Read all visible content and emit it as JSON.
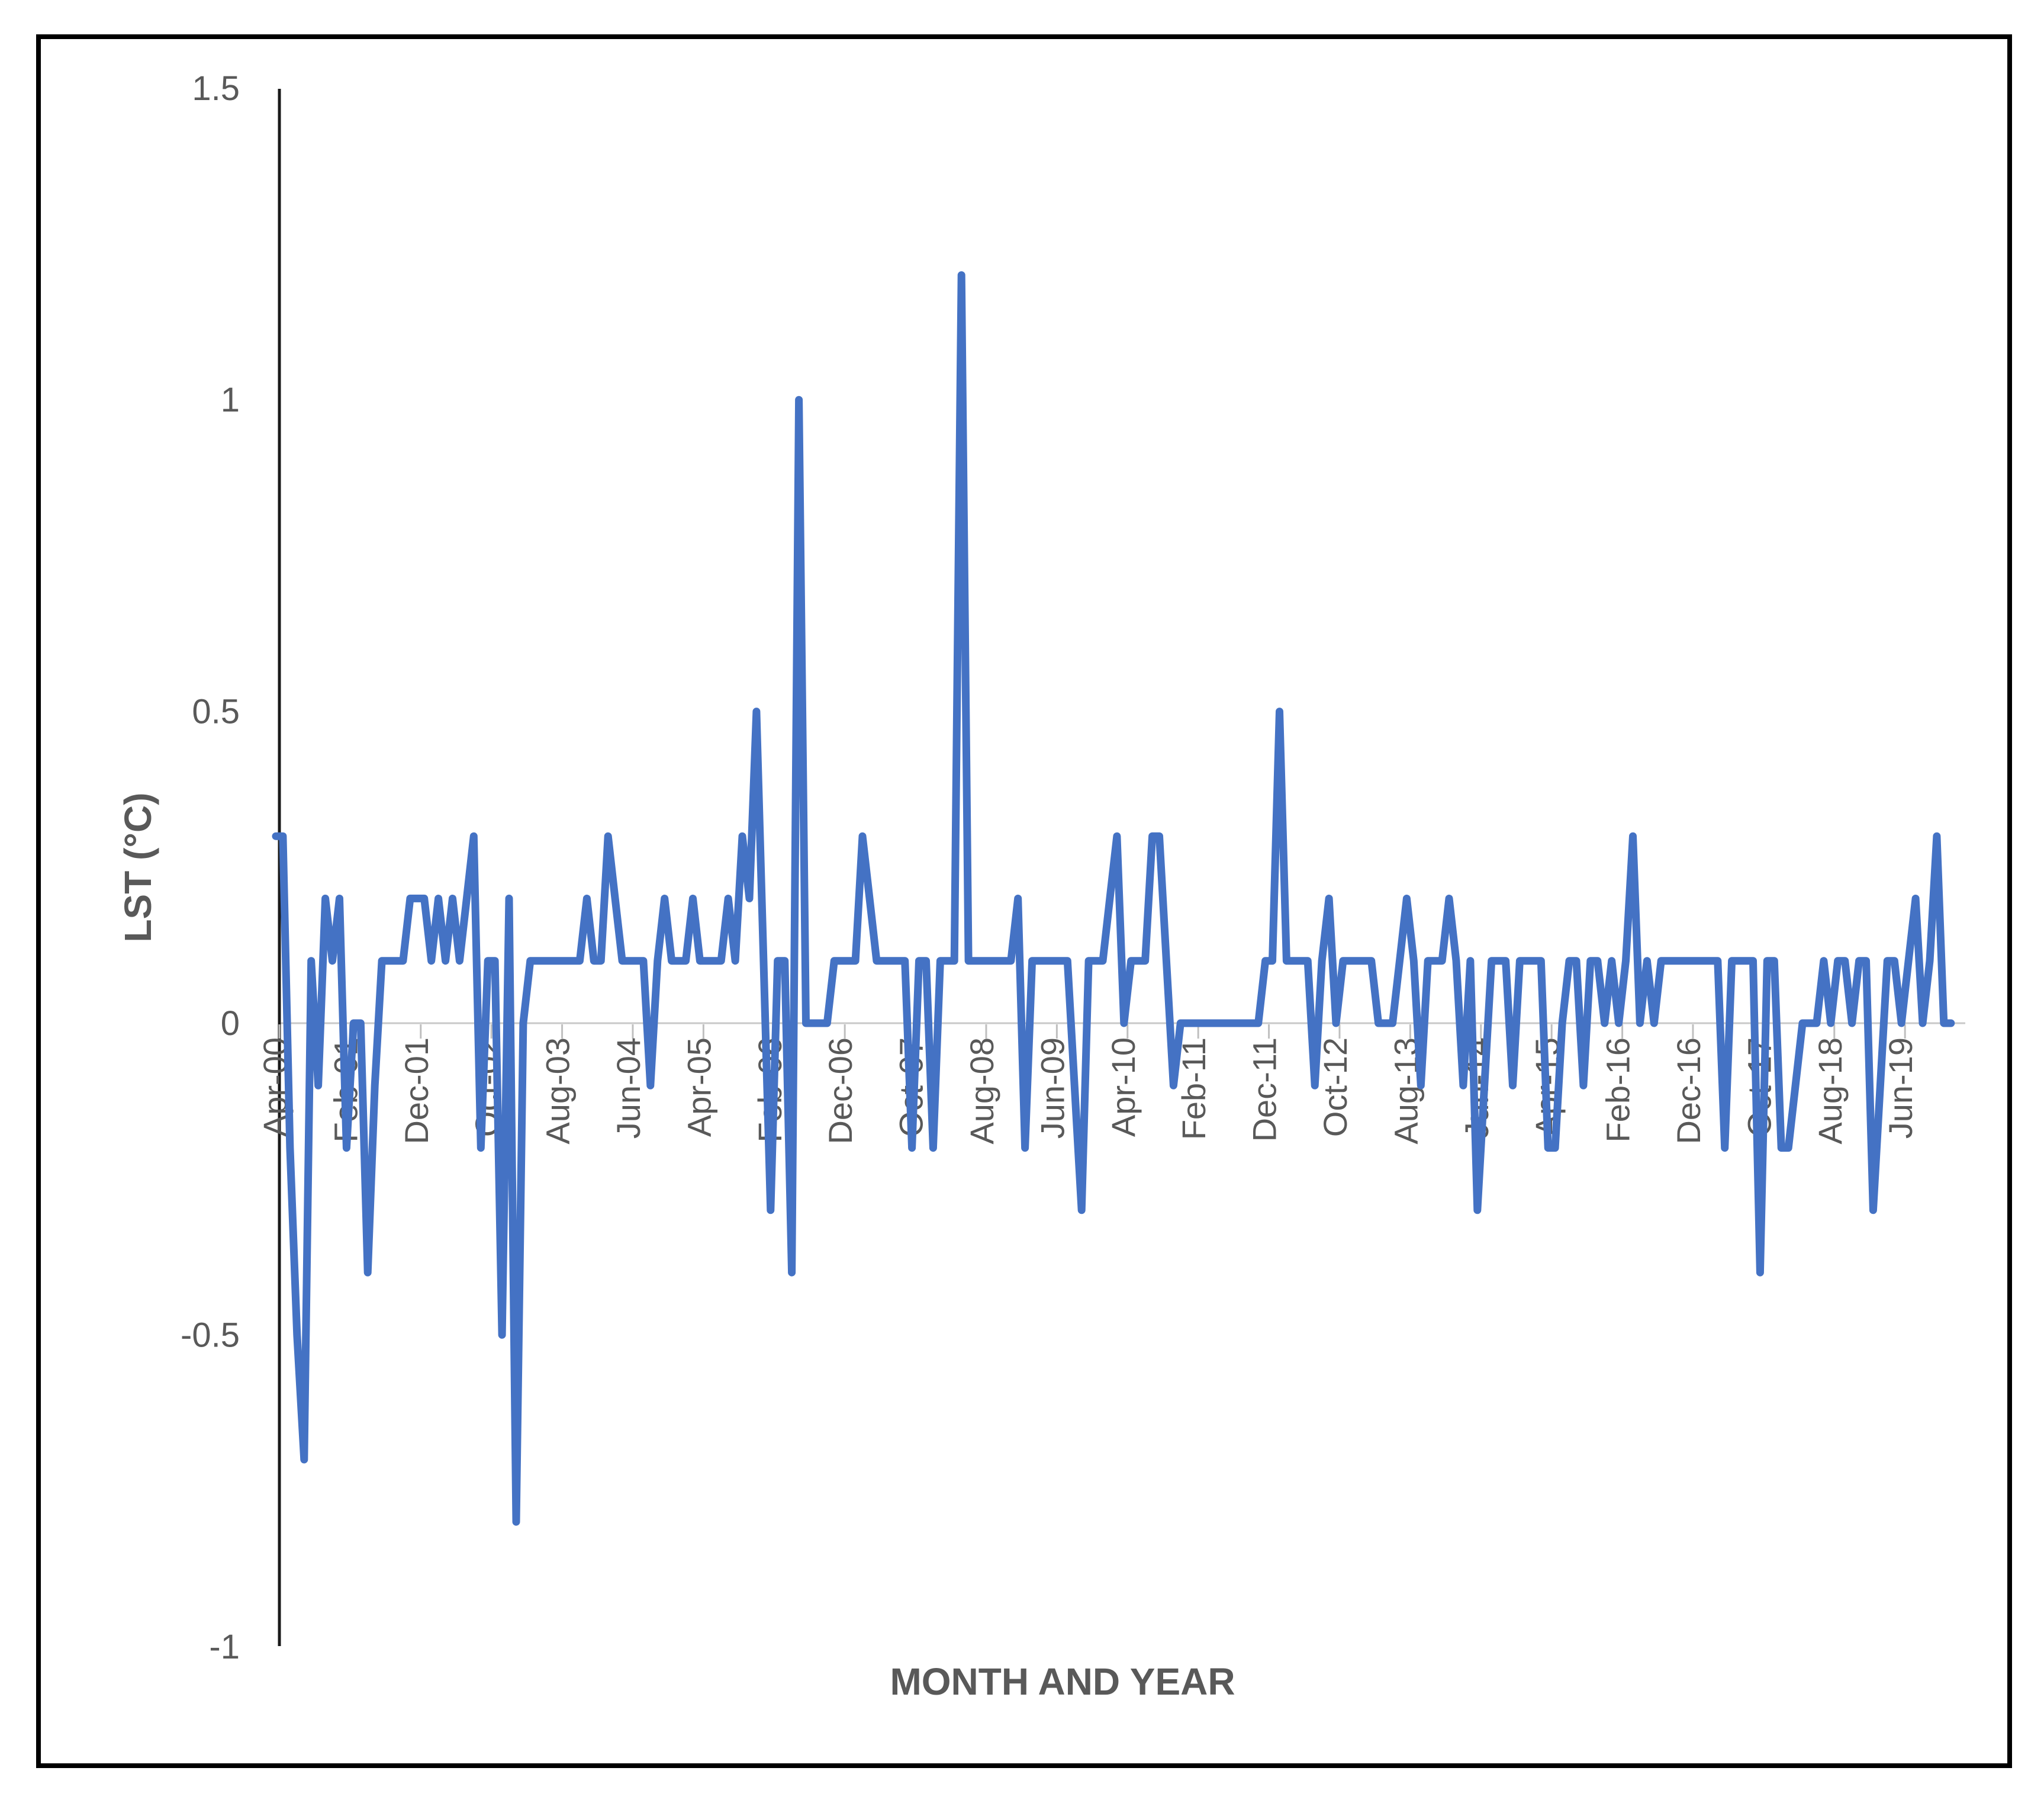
{
  "chart_data": {
    "type": "line",
    "title": "",
    "xlabel": "MONTH AND YEAR",
    "ylabel": "LST  (°C)",
    "start_month": "Apr-2000",
    "interval_months": 1,
    "x_tick_labels": [
      "Apr-00",
      "Feb-01",
      "Dec-01",
      "Oct-02",
      "Aug-03",
      "Jun-04",
      "Apr-05",
      "Feb-06",
      "Dec-06",
      "Oct-07",
      "Aug-08",
      "Jun-09",
      "Apr-10",
      "Feb-11",
      "Dec-11",
      "Oct-12",
      "Aug-13",
      "Jun-14",
      "Apr-15",
      "Feb-16",
      "Dec-16",
      "Oct-17",
      "Aug-18",
      "Jun-19"
    ],
    "x_tick_interval": 10,
    "y_tick_labels": [
      "1.5",
      "1",
      "0.5",
      "0",
      "-0.5",
      "-1"
    ],
    "y_tick_values": [
      1.5,
      1,
      0.5,
      0,
      -0.5,
      -1
    ],
    "ylim": [
      -1,
      1.5
    ],
    "grid": "zero-line-only",
    "legend": "none",
    "values": [
      0.3,
      0.3,
      -0.2,
      -0.5,
      -0.7,
      0.1,
      -0.1,
      0.2,
      0.1,
      0.2,
      -0.2,
      0.0,
      0.0,
      -0.4,
      -0.1,
      0.1,
      0.1,
      0.1,
      0.1,
      0.2,
      0.2,
      0.2,
      0.1,
      0.2,
      0.1,
      0.2,
      0.1,
      0.2,
      0.3,
      -0.2,
      0.1,
      0.1,
      -0.5,
      0.2,
      -0.8,
      0.0,
      0.1,
      0.1,
      0.1,
      0.1,
      0.1,
      0.1,
      0.1,
      0.1,
      0.2,
      0.1,
      0.1,
      0.3,
      0.2,
      0.1,
      0.1,
      0.1,
      0.1,
      -0.1,
      0.1,
      0.2,
      0.1,
      0.1,
      0.1,
      0.2,
      0.1,
      0.1,
      0.1,
      0.1,
      0.2,
      0.1,
      0.3,
      0.2,
      0.5,
      0.1,
      -0.3,
      0.1,
      0.1,
      -0.4,
      1.0,
      0.0,
      0.0,
      0.0,
      0.0,
      0.1,
      0.1,
      0.1,
      0.1,
      0.3,
      0.2,
      0.1,
      0.1,
      0.1,
      0.1,
      0.1,
      -0.2,
      0.1,
      0.1,
      -0.2,
      0.1,
      0.1,
      0.1,
      1.2,
      0.1,
      0.1,
      0.1,
      0.1,
      0.1,
      0.1,
      0.1,
      0.2,
      -0.2,
      0.1,
      0.1,
      0.1,
      0.1,
      0.1,
      0.1,
      -0.1,
      -0.3,
      0.1,
      0.1,
      0.1,
      0.2,
      0.3,
      0.0,
      0.1,
      0.1,
      0.1,
      0.3,
      0.3,
      0.1,
      -0.1,
      0.0,
      0.0,
      0.0,
      0.0,
      0.0,
      0.0,
      0.0,
      0.0,
      0.0,
      0.0,
      0.0,
      0.0,
      0.1,
      0.1,
      0.5,
      0.1,
      0.1,
      0.1,
      0.1,
      -0.1,
      0.1,
      0.2,
      0.0,
      0.1,
      0.1,
      0.1,
      0.1,
      0.1,
      0.0,
      0.0,
      0.0,
      0.1,
      0.2,
      0.1,
      -0.1,
      0.1,
      0.1,
      0.1,
      0.2,
      0.1,
      -0.1,
      0.1,
      -0.3,
      -0.1,
      0.1,
      0.1,
      0.1,
      -0.1,
      0.1,
      0.1,
      0.1,
      0.1,
      -0.2,
      -0.2,
      0.0,
      0.1,
      0.1,
      -0.1,
      0.1,
      0.1,
      0.0,
      0.1,
      0.0,
      0.1,
      0.3,
      0.0,
      0.1,
      0.0,
      0.1,
      0.1,
      0.1,
      0.1,
      0.1,
      0.1,
      0.1,
      0.1,
      0.1,
      -0.2,
      0.1,
      0.1,
      0.1,
      0.1,
      -0.4,
      0.1,
      0.1,
      -0.2,
      -0.2,
      -0.1,
      0.0,
      0.0,
      0.0,
      0.1,
      0.0,
      0.1,
      0.1,
      0.0,
      0.1,
      0.1,
      -0.3,
      -0.1,
      0.1,
      0.1,
      0.0,
      0.1,
      0.2,
      0.0,
      0.1,
      0.3,
      0.0,
      0.0
    ],
    "line_color": "#4472c4",
    "zero_gridline_color": "#c9c9c9",
    "axis_color": "#1a1a1a",
    "label_color": "#595959",
    "frame_color": "#000000"
  }
}
